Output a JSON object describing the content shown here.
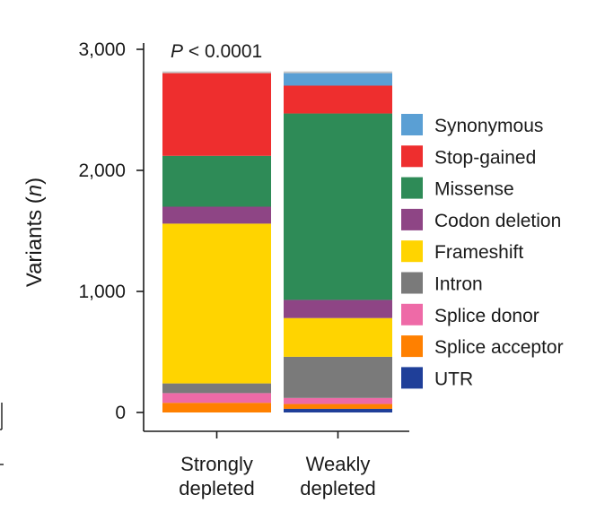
{
  "chart_data": {
    "type": "bar",
    "stacked": true,
    "ylabel_main": "Variants (",
    "ylabel_var": "n",
    "ylabel_end": ")",
    "annotation_p": "P",
    "annotation_rest": " < 0.0001",
    "ylim": [
      0,
      3000
    ],
    "yticks": [
      {
        "value": 0,
        "label": "0"
      },
      {
        "value": 1000,
        "label": "1,000"
      },
      {
        "value": 2000,
        "label": "2,000"
      },
      {
        "value": 3000,
        "label": "3,000"
      }
    ],
    "categories": [
      {
        "line1": "Strongly",
        "line2": "depleted"
      },
      {
        "line1": "Weakly",
        "line2": "depleted"
      }
    ],
    "series": [
      {
        "name": "UTR",
        "color": "#1f3f99",
        "values": [
          0,
          30
        ]
      },
      {
        "name": "Splice acceptor",
        "color": "#ff8000",
        "values": [
          80,
          40
        ]
      },
      {
        "name": "Splice donor",
        "color": "#ee6aa7",
        "values": [
          80,
          50
        ]
      },
      {
        "name": "Intron",
        "color": "#7a7a7a",
        "values": [
          80,
          340
        ]
      },
      {
        "name": "Frameshift",
        "color": "#ffd400",
        "values": [
          1320,
          320
        ]
      },
      {
        "name": "Codon deletion",
        "color": "#8e4585",
        "values": [
          140,
          150
        ]
      },
      {
        "name": "Missense",
        "color": "#2e8b57",
        "values": [
          420,
          1540
        ]
      },
      {
        "name": "Stop-gained",
        "color": "#ee2e2e",
        "values": [
          690,
          230
        ]
      },
      {
        "name": "Synonymous",
        "color": "#5a9fd4",
        "values": [
          0,
          110
        ]
      }
    ],
    "legend_order": [
      "Synonymous",
      "Stop-gained",
      "Missense",
      "Codon deletion",
      "Frameshift",
      "Intron",
      "Splice donor",
      "Splice acceptor",
      "UTR"
    ],
    "legend_position": "right"
  }
}
